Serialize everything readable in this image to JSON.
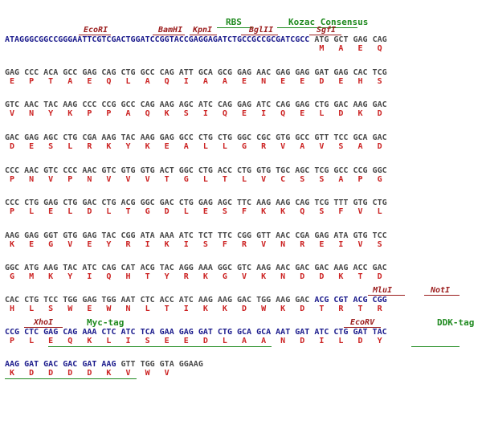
{
  "features": {
    "rbs": "RBS",
    "kozac": "Kozac Consensus",
    "myc_tag": "Myc-tag",
    "ddk_tag": "DDK-tag"
  },
  "sites": {
    "ecori_1": "EcoRI",
    "bamhi": "BamHI",
    "kpni": "KpnI",
    "bglii": "BglII",
    "sgfi": "SgfI",
    "mlui": "MluI",
    "noti": "NotI",
    "xhoi": "XhoI",
    "ecorv": "EcoRV"
  },
  "rows": [
    {
      "seq_blue": "ATAGGGCGGCCGGGAATTCGTCGACTGGATCCGGTACCGAGGAGATCTGCCGCCGCGATCGCC",
      "seq_rest": " ATG GCT GAG CAG",
      "aa": "                                                                 M   A   E   Q"
    },
    {
      "seq": "GAG CCC ACA GCC GAG CAG CTG GCC CAG ATT GCA GCG GAG AAC GAG GAG GAT GAG CAC TCG",
      "aa": " E   P   T   A   E   Q   L   A   Q   I   A   A   E   N   E   E   D   E   H   S"
    },
    {
      "seq": "GTC AAC TAC AAG CCC CCG GCC CAG AAG AGC ATC CAG GAG ATC CAG GAG CTG GAC AAG GAC",
      "aa": " V   N   Y   K   P   P   A   Q   K   S   I   Q   E   I   Q   E   L   D   K   D"
    },
    {
      "seq": "GAC GAG AGC CTG CGA AAG TAC AAG GAG GCC CTG CTG GGC CGC GTG GCC GTT TCC GCA GAC",
      "aa": " D   E   S   L   R   K   Y   K   E   A   L   L   G   R   V   A   V   S   A   D"
    },
    {
      "seq": "CCC AAC GTC CCC AAC GTC GTG GTG ACT GGC CTG ACC CTG GTG TGC AGC TCG GCC CCG GGC",
      "aa": " P   N   V   P   N   V   V   V   T   G   L   T   L   V   C   S   S   A   P   G"
    },
    {
      "seq": "CCC CTG GAG CTG GAC CTG ACG GGC GAC CTG GAG AGC TTC AAG AAG CAG TCG TTT GTG CTG",
      "aa": " P   L   E   L   D   L   T   G   D   L   E   S   F   K   K   Q   S   F   V   L"
    },
    {
      "seq": "AAG GAG GGT GTG GAG TAC CGG ATA AAA ATC TCT TTC CGG GTT AAC CGA GAG ATA GTG TCC",
      "aa": " K   E   G   V   E   Y   R   I   K   I   S   F   R   V   N   R   E   I   V   S"
    },
    {
      "seq": "GGC ATG AAG TAC ATC CAG CAT ACG TAC AGG AAA GGC GTC AAG AAC GAC GAC AAG ACC GAC",
      "aa": " G   M   K   Y   I   Q   H   T   Y   R   K   G   V   K   N   D   D   K   T   D"
    },
    {
      "seq": "CAC CTG TCC TGG GAG TGG AAT CTC ACC ATC AAG AAG GAC TGG AAG GAC ",
      "seq_blue_end": "ACG CGT ACG CGG",
      "aa": " H   L   S   W   E   W   N   L   T   I   K   K   D   W   K   D   T   R   T   R"
    },
    {
      "seq_blue": "CCG CTC GAG CAG AAA CTC ATC TCA GAA GAG GAT CTG GCA GCA AAT GAT ATC CTG GAT TAC",
      "aa": " P   L   E   Q   K   L   I   S   E   E   D   L   A   A   N   D   I   L   D   Y"
    },
    {
      "seq_blue": "AAG GAT GAC GAC GAT AAG ",
      "seq_rest": "GTT TGG GTA GGAAG",
      "aa": " K   D   D   D   D   K   V   W   V"
    }
  ]
}
